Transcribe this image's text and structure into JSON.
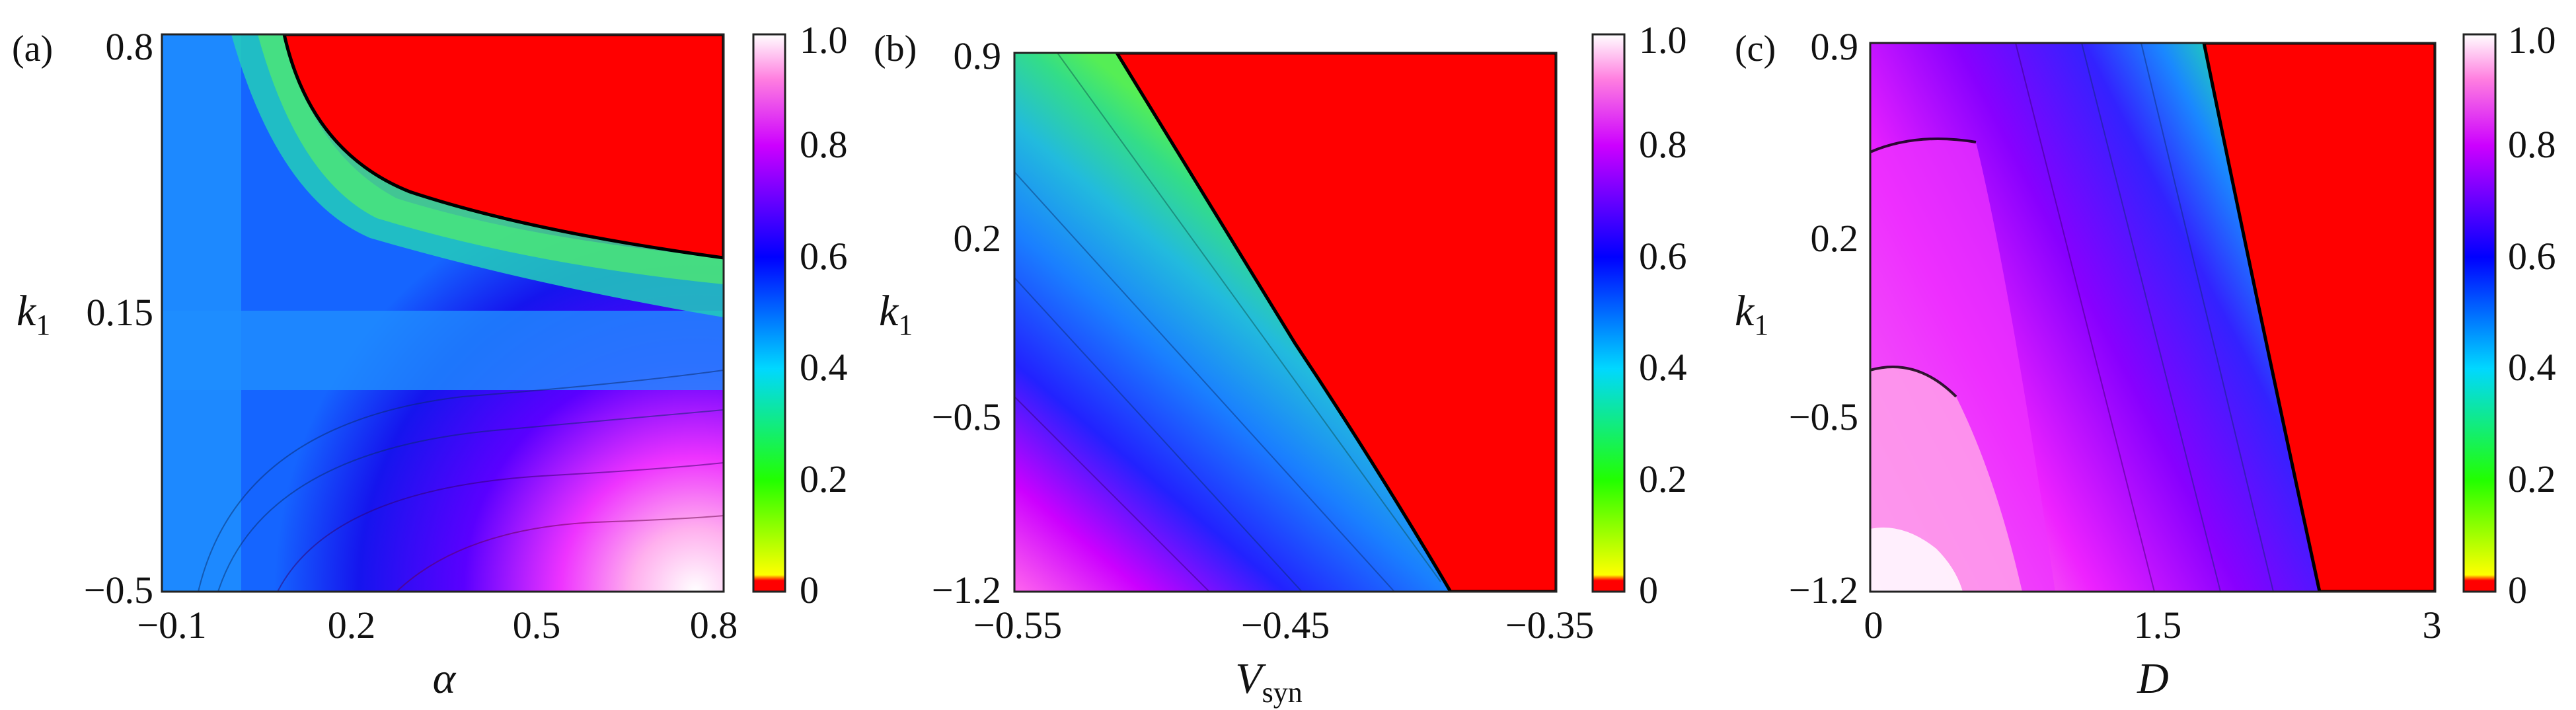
{
  "chart_data": [
    {
      "type": "heatmap",
      "panel_label": "(a)",
      "xlabel": "α",
      "ylabel": "k",
      "ylabel_sub": "1",
      "xlim": [
        -0.1,
        0.8
      ],
      "ylim": [
        -0.5,
        0.8
      ],
      "xticks": [
        "−0.1",
        "0.2",
        "0.5",
        "0.8"
      ],
      "yticks": [
        "−0.5",
        "0.15",
        "0.8"
      ],
      "colorbar_ticks": [
        "0",
        "0.2",
        "0.4",
        "0.6",
        "0.8",
        "1.0"
      ],
      "colorbar_range": [
        0,
        1.0
      ],
      "regions": [
        {
          "value": 0,
          "color": "#ff0000",
          "desc": "upper-right zone"
        },
        {
          "value": 0.45,
          "color": "#1f8fff"
        },
        {
          "value": 0.62,
          "color": "#1a1aff"
        },
        {
          "value": 0.9,
          "color": "#ff88dd"
        }
      ]
    },
    {
      "type": "heatmap",
      "panel_label": "(b)",
      "xlabel": "V",
      "xlabel_sub": "syn",
      "ylabel": "k",
      "ylabel_sub": "1",
      "xlim": [
        -0.55,
        -0.35
      ],
      "ylim": [
        -1.2,
        0.9
      ],
      "xticks": [
        "−0.55",
        "−0.45",
        "−0.35"
      ],
      "yticks": [
        "−1.2",
        "−0.5",
        "0.2",
        "0.9"
      ],
      "colorbar_ticks": [
        "0",
        "0.2",
        "0.4",
        "0.6",
        "0.8",
        "1.0"
      ],
      "colorbar_range": [
        0,
        1.0
      ]
    },
    {
      "type": "heatmap",
      "panel_label": "(c)",
      "xlabel": "D",
      "ylabel": "k",
      "ylabel_sub": "1",
      "xlim": [
        0,
        3
      ],
      "ylim": [
        -1.2,
        0.9
      ],
      "xticks": [
        "0",
        "1.5",
        "3"
      ],
      "yticks": [
        "−1.2",
        "−0.5",
        "0.2",
        "0.9"
      ],
      "colorbar_ticks": [
        "0",
        "0.2",
        "0.4",
        "0.6",
        "0.8",
        "1.0"
      ],
      "colorbar_range": [
        0,
        1.0
      ]
    }
  ]
}
